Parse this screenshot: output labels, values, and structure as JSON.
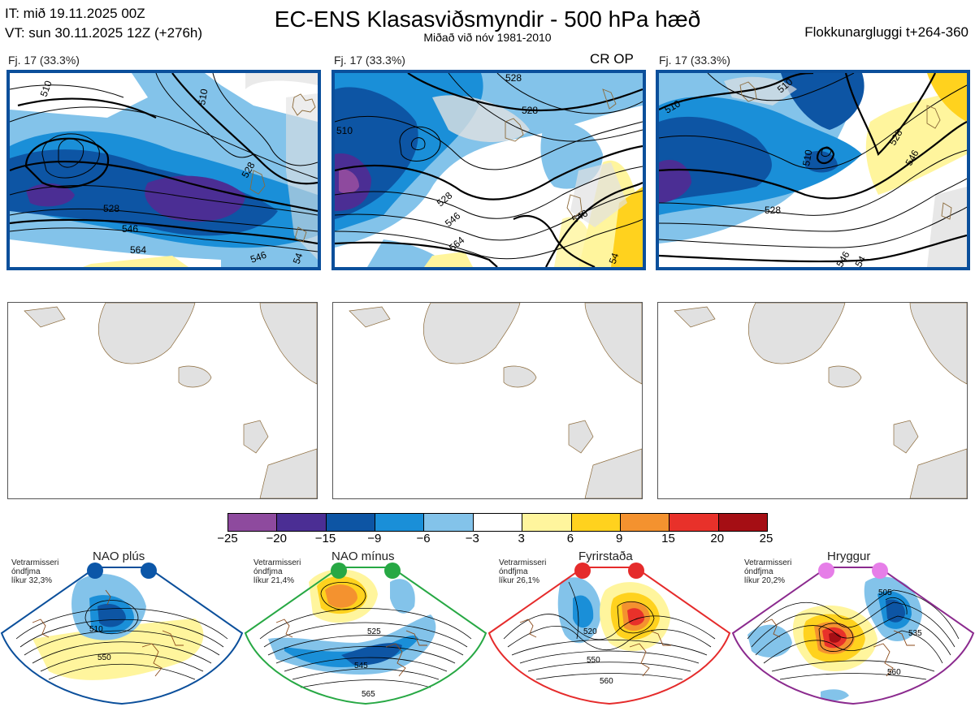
{
  "header": {
    "init_time": "IT: mið 19.11.2025 00Z",
    "valid_time": "VT: sun 30.11.2025 12Z  (+276h)",
    "title": "EC-ENS Klasasviðsmyndir - 500 hPa hæð",
    "subtitle": "Miðað við nóv 1981-2010",
    "window": "Flokkunargluggi t+264-360"
  },
  "panels": [
    {
      "label": "Fj. 17 (33.3%)",
      "extra": "",
      "contour_labels": [
        "510",
        "510",
        "528",
        "546",
        "564",
        "528",
        "546",
        "54"
      ]
    },
    {
      "label": "Fj. 17 (33.3%)",
      "extra": "CR OP",
      "contour_labels": [
        "528",
        "528",
        "510",
        "528",
        "546",
        "564",
        "546",
        "54"
      ]
    },
    {
      "label": "Fj. 17 (33.3%)",
      "extra": "",
      "contour_labels": [
        "510",
        "510",
        "510",
        "528",
        "528",
        "546",
        "546",
        "54"
      ]
    }
  ],
  "colorbar": {
    "ticks": [
      "−25",
      "−20",
      "−15",
      "−9",
      "−6",
      "−3",
      "3",
      "6",
      "9",
      "15",
      "20",
      "25"
    ],
    "colors": [
      "#8e4a9e",
      "#4b2e94",
      "#0d55a4",
      "#1a8fd8",
      "#83c3ea",
      "#ffffff",
      "#fff59d",
      "#ffd21e",
      "#f4922f",
      "#e8312a",
      "#a50e14"
    ]
  },
  "regimes": [
    {
      "name": "NAO plús",
      "caption": [
        "Vetrarmisseri",
        "óndfjma",
        "líkur 32,3%"
      ],
      "dot_color": "#0b56a8",
      "frame_color": "#0b4f9b",
      "labels": [
        "510",
        "550"
      ]
    },
    {
      "name": "NAO mínus",
      "caption": [
        "Vetrarmisseri",
        "óndfjma",
        "líkur 21,4%"
      ],
      "dot_color": "#27a844",
      "frame_color": "#27a844",
      "labels": [
        "525",
        "545",
        "565"
      ]
    },
    {
      "name": "Fyrirstaða",
      "caption": [
        "Vetrarmisseri",
        "óndfjma",
        "líkur 26,1%"
      ],
      "dot_color": "#e52b2b",
      "frame_color": "#e52b2b",
      "labels": [
        "520",
        "550",
        "560"
      ]
    },
    {
      "name": "Hryggur",
      "caption": [
        "Vetrarmisseri",
        "óndfjma",
        "líkur 20,2%"
      ],
      "dot_color": "#e67ee8",
      "frame_color": "#8b2a8e",
      "labels": [
        "505",
        "535",
        "560"
      ]
    }
  ]
}
